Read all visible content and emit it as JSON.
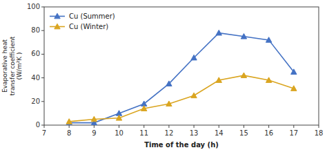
{
  "chart_data": {
    "type": "line",
    "xlabel": "Time of the day (h)",
    "ylabel": "Evaporative heat\ntransfer coefficient\n(W/m²K )",
    "x": [
      8,
      9,
      10,
      11,
      12,
      13,
      14,
      15,
      16,
      17
    ],
    "series": [
      {
        "name": "Cu (Summer)",
        "color": "#4472C4",
        "marker": "triangle",
        "values": [
          2,
          2,
          10,
          18,
          35,
          57,
          78,
          75,
          72,
          45
        ]
      },
      {
        "name": "Cu (Winter)",
        "color": "#DAA520",
        "marker": "triangle",
        "values": [
          3,
          5,
          6,
          14,
          18,
          25,
          38,
          42,
          38,
          31
        ]
      }
    ],
    "xlim": [
      7,
      18
    ],
    "ylim": [
      0,
      100
    ],
    "xticks": [
      7,
      8,
      9,
      10,
      11,
      12,
      13,
      14,
      15,
      16,
      17,
      18
    ],
    "yticks": [
      0,
      20,
      40,
      60,
      80,
      100
    ],
    "grid": false,
    "legend": "upper left"
  }
}
